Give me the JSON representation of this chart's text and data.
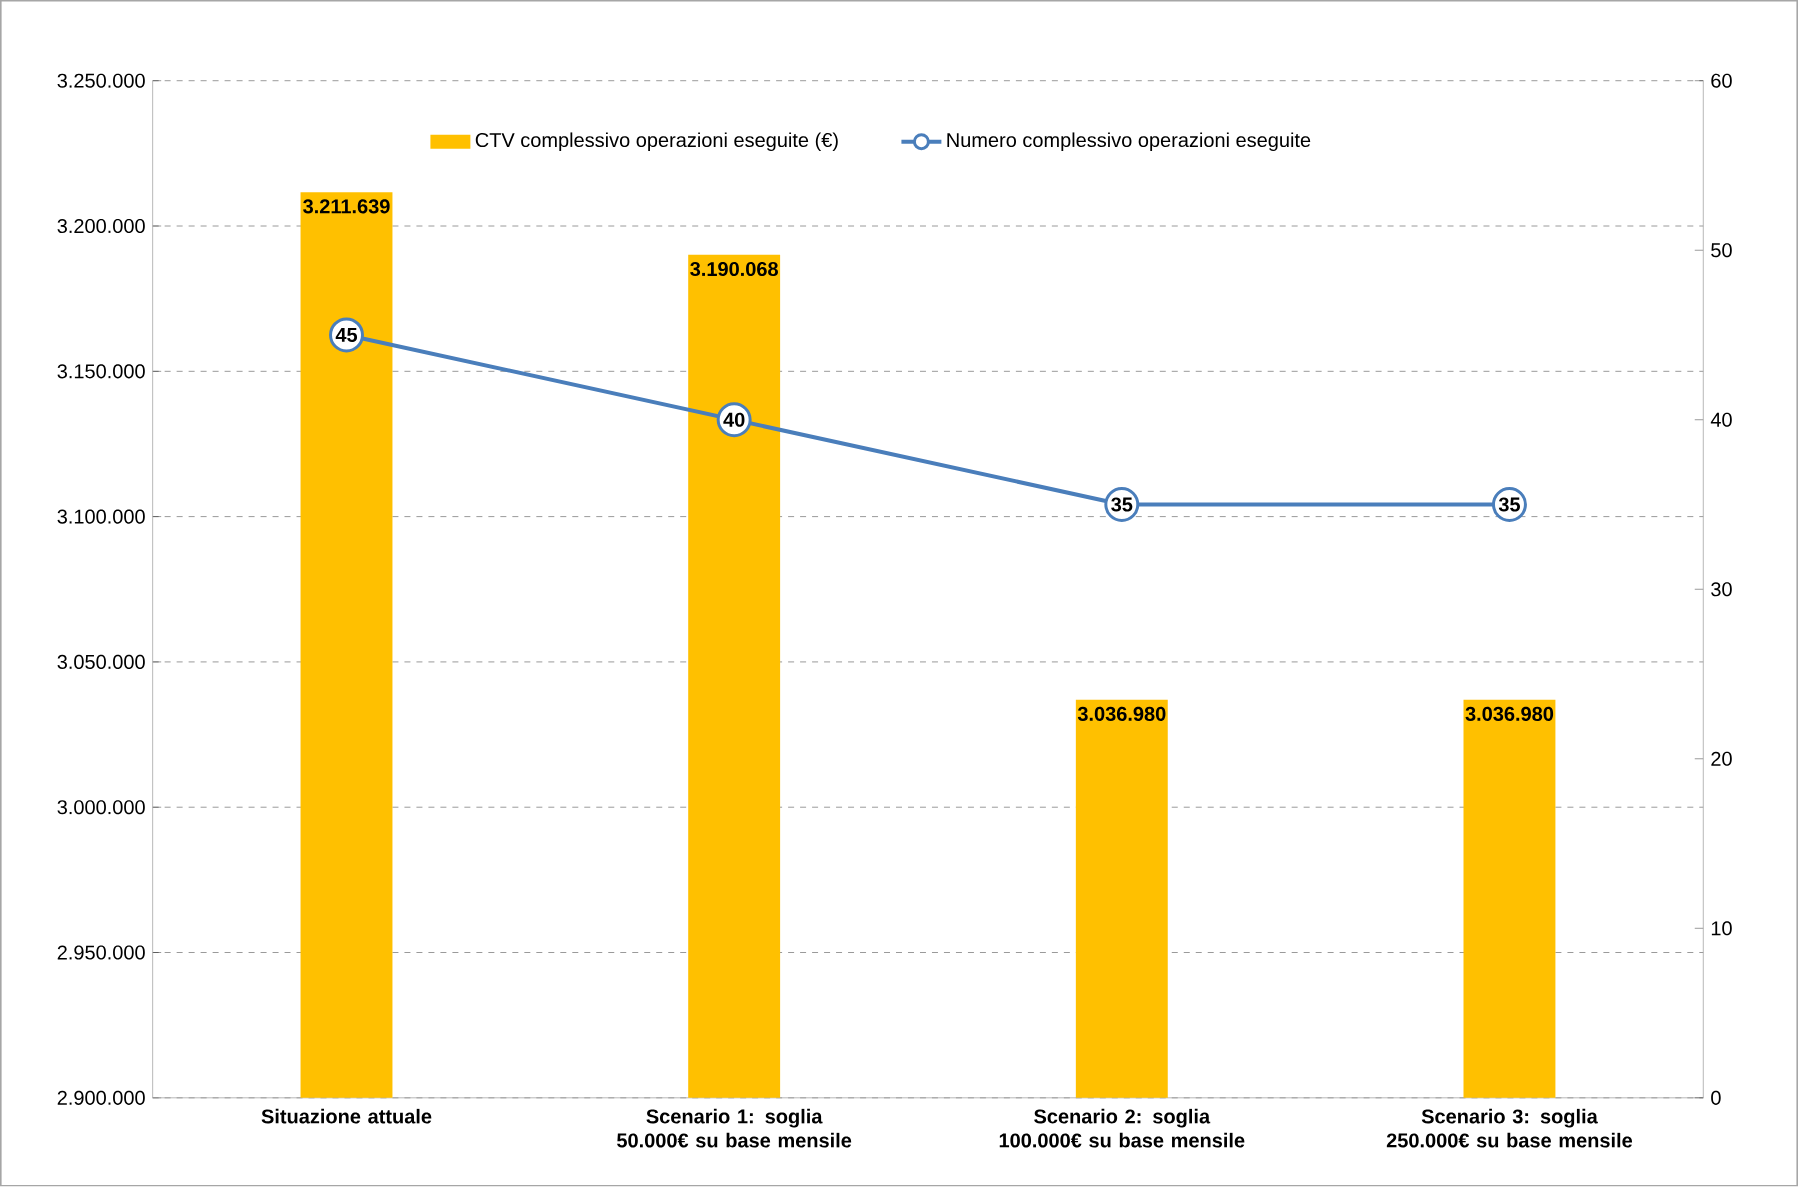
{
  "chart_data": {
    "type": "bar",
    "categories": [
      "Situazione attuale",
      "Scenario 1: soglia  50.000€ su base mensile",
      "Scenario 2: soglia  100.000€ su base mensile",
      "Scenario 3: soglia  250.000€ su base mensile"
    ],
    "series": [
      {
        "name": "CTV complessivo operazioni eseguite (€)",
        "color": "#ffc000",
        "values": [
          3211639,
          3190068,
          3036980,
          3036980
        ],
        "value_labels": [
          "3.211.639",
          "3.190.068",
          "3.036.980",
          "3.036.980"
        ]
      },
      {
        "name": "Numero complessivo operazioni eseguite",
        "type": "line",
        "axis": "y2",
        "color": "#4a7ebb",
        "marker": "circle",
        "values": [
          45,
          40,
          35,
          35
        ],
        "value_labels": [
          "45",
          "40",
          "35",
          "35"
        ]
      }
    ],
    "ylim": [
      2900000,
      3250000
    ],
    "yticks": [
      {
        "value": 2900000,
        "label": "2.900.000"
      },
      {
        "value": 2950000,
        "label": "2.950.000"
      },
      {
        "value": 3000000,
        "label": "3.000.000"
      },
      {
        "value": 3050000,
        "label": "3.050.000"
      },
      {
        "value": 3100000,
        "label": "3.100.000"
      },
      {
        "value": 3150000,
        "label": "3.150.000"
      },
      {
        "value": 3200000,
        "label": "3.200.000"
      },
      {
        "value": 3250000,
        "label": "3.250.000"
      }
    ],
    "y2lim": [
      0,
      60
    ],
    "y2ticks": [
      0,
      10,
      20,
      30,
      40,
      50,
      60
    ],
    "grid": "y",
    "legend": "top"
  }
}
